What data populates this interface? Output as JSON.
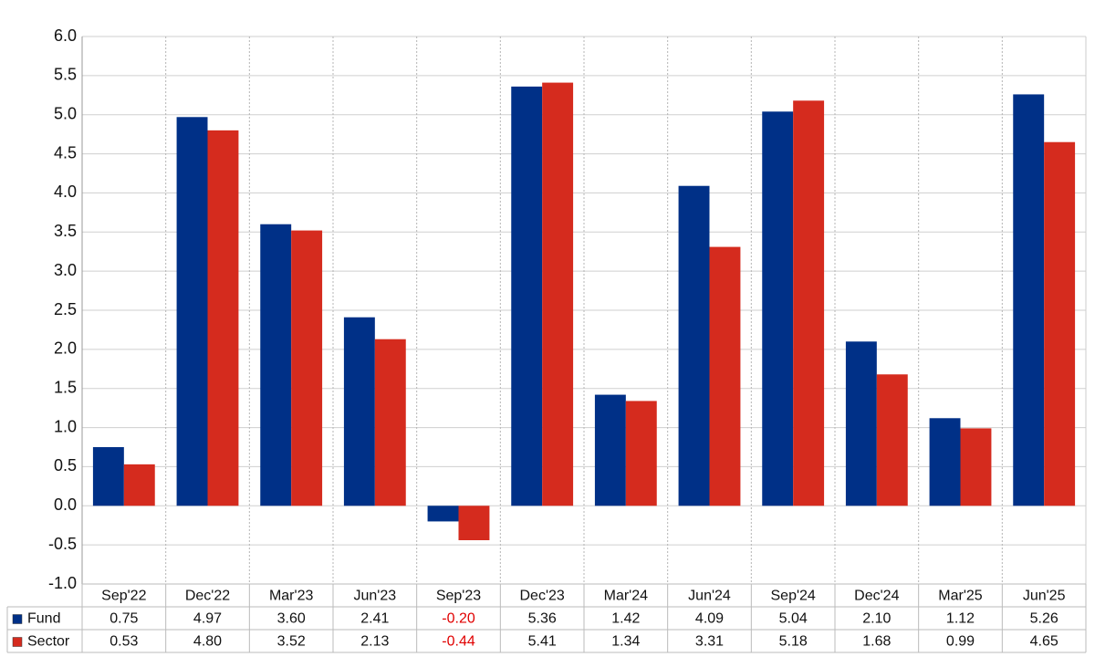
{
  "chart_data": {
    "type": "bar",
    "categories": [
      "Sep'22",
      "Dec'22",
      "Mar'23",
      "Jun'23",
      "Sep'23",
      "Dec'23",
      "Mar'24",
      "Jun'24",
      "Sep'24",
      "Dec'24",
      "Mar'25",
      "Jun'25"
    ],
    "series": [
      {
        "name": "Fund",
        "color": "#003087",
        "values": [
          0.75,
          4.97,
          3.6,
          2.41,
          -0.2,
          5.36,
          1.42,
          4.09,
          5.04,
          2.1,
          1.12,
          5.26
        ],
        "value_labels": [
          "0.75",
          "4.97",
          "3.60",
          "2.41",
          "-0.20",
          "5.36",
          "1.42",
          "4.09",
          "5.04",
          "2.10",
          "1.12",
          "5.26"
        ]
      },
      {
        "name": "Sector",
        "color": "#d52b1e",
        "values": [
          0.53,
          4.8,
          3.52,
          2.13,
          -0.44,
          5.41,
          1.34,
          3.31,
          5.18,
          1.68,
          0.99,
          4.65
        ],
        "value_labels": [
          "0.53",
          "4.80",
          "3.52",
          "2.13",
          "-0.44",
          "5.41",
          "1.34",
          "3.31",
          "5.18",
          "1.68",
          "0.99",
          "4.65"
        ]
      }
    ],
    "ylim": [
      -1,
      6
    ],
    "yticks": [
      {
        "value": -1,
        "label": "-1.0"
      },
      -0.5,
      {
        "value": 0,
        "label": "0.0"
      },
      0.5,
      {
        "value": 1,
        "label": "1.0"
      },
      1.5,
      {
        "value": 2,
        "label": "2.0"
      },
      2.5,
      {
        "value": 3,
        "label": "3.0"
      },
      3.5,
      {
        "value": 4,
        "label": "4.0"
      },
      4.5,
      {
        "value": 5,
        "label": "5.0"
      },
      5.5,
      {
        "value": 6,
        "label": "6.0"
      }
    ],
    "grid": true,
    "negative_color": "#e00000"
  }
}
